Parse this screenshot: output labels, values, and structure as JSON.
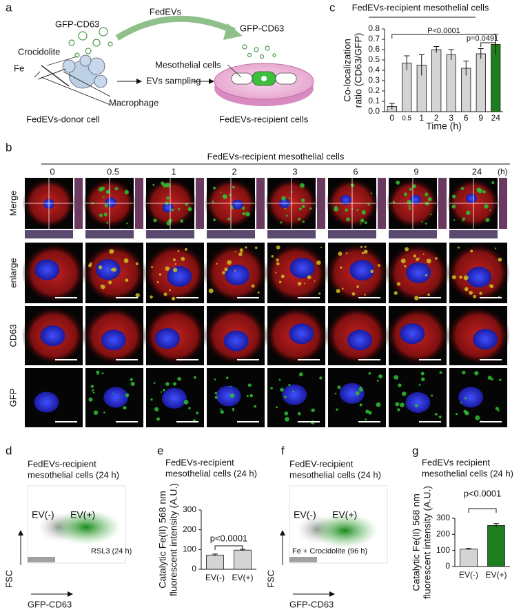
{
  "panel_labels": [
    "a",
    "b",
    "c",
    "d",
    "e",
    "f",
    "g"
  ],
  "schematic": {
    "fedevs": "FedEVs",
    "gfp_left": "GFP-CD63",
    "gfp_right": "GFP-CD63",
    "crocidolite": "Crocidolite",
    "fe": "Fe",
    "mesothelial": "Mesothelial cells",
    "sampling": "EVs sampling",
    "macrophage": "Macrophage",
    "donor": "FedEVs-donor cell",
    "recipient": "FedEVs-recipient cells"
  },
  "microscopy": {
    "title": "FedEVs-recipient mesothelial cells",
    "times": [
      "0",
      "0.5",
      "1",
      "2",
      "3",
      "6",
      "9",
      "24"
    ],
    "unit": "(h)",
    "rows": [
      "Merge",
      "enlarge",
      "CD63",
      "GFP"
    ]
  },
  "flow": [
    {
      "title": [
        "FedEVs-recipient",
        "mesothelial cells (24 h)"
      ],
      "gate_neg": "EV(-)",
      "gate_pos": "EV(+)",
      "treatment": "RSL3 (24 h)",
      "y_label": "FSC",
      "x_label": "GFP-CD63"
    },
    {
      "title": [
        "FedEV-recipient",
        "mesothelial cells (24 h)"
      ],
      "gate_neg": "EV(-)",
      "gate_pos": "EV(+)",
      "treatment": "Fe + Crocidolite (96 h)",
      "y_label": "FSC",
      "x_label": "GFP-CD63"
    }
  ],
  "chart_data": [
    {
      "type": "bar",
      "title": [
        "FedEVs-recipient mesothelial cells"
      ],
      "y_label": [
        "Co-localization",
        "ratio (CD63/GFP)"
      ],
      "x_label": "Time (h)",
      "categories": [
        "0",
        "0.5",
        "1",
        "2",
        "3",
        "6",
        "9",
        "24"
      ],
      "values": [
        0.05,
        0.47,
        0.45,
        0.6,
        0.55,
        0.42,
        0.56,
        0.65
      ],
      "errors": [
        0.03,
        0.07,
        0.1,
        0.03,
        0.05,
        0.07,
        0.05,
        0.1
      ],
      "colors": [
        "#d4d4d4",
        "#d4d4d4",
        "#d4d4d4",
        "#d4d4d4",
        "#d4d4d4",
        "#d4d4d4",
        "#d4d4d4",
        "#1e7d1e"
      ],
      "ylim": [
        0,
        0.8
      ],
      "yticks": [
        {
          "value": 0,
          "label": "0.0"
        },
        0.1,
        0.2,
        0.3,
        0.4,
        0.5,
        0.6,
        0.7,
        0.8
      ],
      "annotations": [
        "P<0.0001",
        "p=0.0491"
      ]
    },
    {
      "type": "bar",
      "title": [
        "FedEVs-recipient",
        "mesothelial cells (24 h)"
      ],
      "y_label": [
        "Catalytic Fe(II) 568 nm",
        "fluorescent intensity (A.U.)"
      ],
      "categories": [
        "EV(-)",
        "EV(+)"
      ],
      "values": [
        72,
        97
      ],
      "errors": [
        5,
        4
      ],
      "colors": [
        "#d4d4d4",
        "#d4d4d4"
      ],
      "ylim": [
        0,
        300
      ],
      "yticks": [
        0,
        100,
        200,
        300
      ],
      "annotations": [
        "p<0.0001"
      ]
    },
    {
      "type": "bar",
      "title": [
        "FedEVs recipient",
        "mesothelial cells (24 h)"
      ],
      "y_label": [
        "Catalytic Fe(II) 568 nm",
        "fluorescent intensity (A.U.)"
      ],
      "categories": [
        "EV(-)",
        "EV(+)"
      ],
      "values": [
        108,
        255
      ],
      "errors": [
        5,
        12
      ],
      "colors": [
        "#d4d4d4",
        "#1e7d1e"
      ],
      "ylim": [
        0,
        300
      ],
      "yticks": [
        0,
        100,
        200,
        300
      ],
      "annotations": [
        "p<0.0001"
      ]
    }
  ]
}
